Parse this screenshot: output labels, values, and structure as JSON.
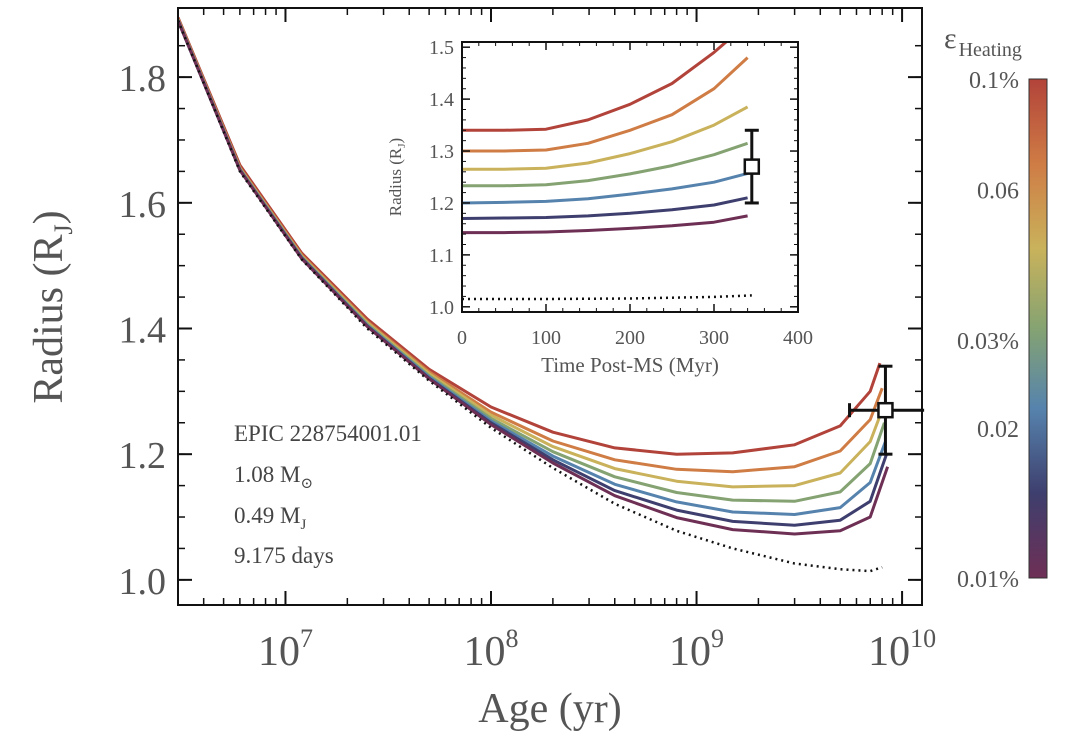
{
  "chart_data": [
    {
      "type": "line",
      "x_scale": "log",
      "xlabel": "Age (yr)",
      "ylabel": "Radius (RJ)",
      "ylabel_main": "Radius (R",
      "ylabel_sub": "J",
      "ylabel_close": ")",
      "xlim": [
        3000000,
        12500000000
      ],
      "ylim": [
        0.96,
        1.91
      ],
      "x_tick_labels": [
        "10^7",
        "10^8",
        "10^9",
        "10^10"
      ],
      "x_ticks_exponent": [
        "7",
        "8",
        "9",
        "10"
      ],
      "y_ticks": [
        "1.0",
        "1.2",
        "1.4",
        "1.6",
        "1.8"
      ],
      "annotation": {
        "name": "EPIC 228754001.01",
        "mass_star": "1.08 M",
        "mass_star_sub": "⊙",
        "mass_planet": "0.49 M",
        "mass_planet_sub": "J",
        "period": "9.175 days"
      },
      "series": [
        {
          "heating_pct": 0.1,
          "color": "#b2433a",
          "x": [
            3000000,
            6000000,
            12000000,
            25000000,
            50000000,
            100000000,
            200000000,
            400000000,
            800000000,
            1500000000,
            3000000000,
            5000000000,
            7000000000,
            7800000000
          ],
          "y": [
            1.895,
            1.66,
            1.52,
            1.415,
            1.335,
            1.275,
            1.235,
            1.21,
            1.2,
            1.202,
            1.215,
            1.245,
            1.3,
            1.345
          ]
        },
        {
          "heating_pct": 0.08,
          "color": "#cf7c45",
          "x": [
            3000000,
            6000000,
            12000000,
            25000000,
            50000000,
            100000000,
            200000000,
            400000000,
            800000000,
            1500000000,
            3000000000,
            5000000000,
            7000000000,
            8000000000
          ],
          "y": [
            1.893,
            1.656,
            1.517,
            1.411,
            1.331,
            1.267,
            1.221,
            1.191,
            1.176,
            1.172,
            1.18,
            1.205,
            1.255,
            1.305
          ]
        },
        {
          "heating_pct": 0.06,
          "color": "#c9b25b",
          "x": [
            3000000,
            6000000,
            12000000,
            25000000,
            50000000,
            100000000,
            200000000,
            400000000,
            800000000,
            1500000000,
            3000000000,
            5000000000,
            7000000000,
            8100000000
          ],
          "y": [
            1.892,
            1.655,
            1.515,
            1.409,
            1.328,
            1.262,
            1.212,
            1.177,
            1.157,
            1.148,
            1.15,
            1.17,
            1.22,
            1.275
          ]
        },
        {
          "heating_pct": 0.04,
          "color": "#85a372",
          "x": [
            3000000,
            6000000,
            12000000,
            25000000,
            50000000,
            100000000,
            200000000,
            400000000,
            800000000,
            1500000000,
            3000000000,
            5000000000,
            7000000000,
            8200000000
          ],
          "y": [
            1.891,
            1.654,
            1.514,
            1.407,
            1.325,
            1.257,
            1.204,
            1.164,
            1.139,
            1.127,
            1.125,
            1.14,
            1.185,
            1.25
          ]
        },
        {
          "heating_pct": 0.025,
          "color": "#5683ad",
          "x": [
            3000000,
            6000000,
            12000000,
            25000000,
            50000000,
            100000000,
            200000000,
            400000000,
            800000000,
            1500000000,
            3000000000,
            5000000000,
            7000000000,
            8300000000
          ],
          "y": [
            1.891,
            1.653,
            1.513,
            1.405,
            1.323,
            1.253,
            1.197,
            1.152,
            1.124,
            1.108,
            1.104,
            1.115,
            1.155,
            1.22
          ]
        },
        {
          "heating_pct": 0.015,
          "color": "#3e3f6e",
          "x": [
            3000000,
            6000000,
            12000000,
            25000000,
            50000000,
            100000000,
            200000000,
            400000000,
            800000000,
            1500000000,
            3000000000,
            5000000000,
            7000000000,
            8400000000
          ],
          "y": [
            1.89,
            1.652,
            1.512,
            1.404,
            1.321,
            1.25,
            1.191,
            1.142,
            1.111,
            1.093,
            1.087,
            1.095,
            1.125,
            1.2
          ]
        },
        {
          "heating_pct": 0.01,
          "color": "#6e2f55",
          "x": [
            3000000,
            6000000,
            12000000,
            25000000,
            50000000,
            100000000,
            200000000,
            400000000,
            800000000,
            1500000000,
            3000000000,
            5000000000,
            7000000000,
            8500000000
          ],
          "y": [
            1.89,
            1.652,
            1.511,
            1.403,
            1.32,
            1.247,
            1.186,
            1.134,
            1.099,
            1.08,
            1.073,
            1.078,
            1.1,
            1.18
          ]
        },
        {
          "heating_pct": 0,
          "color": "#111111",
          "dashed": true,
          "x": [
            3000000,
            6000000,
            12000000,
            25000000,
            50000000,
            100000000,
            200000000,
            400000000,
            800000000,
            1500000000,
            3000000000,
            5000000000,
            7000000000,
            8000000000
          ],
          "y": [
            1.89,
            1.65,
            1.51,
            1.4,
            1.317,
            1.242,
            1.178,
            1.121,
            1.078,
            1.05,
            1.026,
            1.017,
            1.014,
            1.02
          ]
        }
      ],
      "observation": {
        "x": 8300000000,
        "y": 1.27,
        "y_err": 0.07,
        "x_err_low": 2750000000,
        "x_err_high": 4500000000
      }
    },
    {
      "type": "line",
      "xlabel": "Time Post-MS (Myr)",
      "ylabel": "Radius (RJ)",
      "ylabel_main": "Radius (R",
      "ylabel_sub": "J",
      "ylabel_close": ")",
      "xlim": [
        0,
        400
      ],
      "ylim": [
        0.99,
        1.51
      ],
      "x_ticks": [
        "0",
        "100",
        "200",
        "300",
        "400"
      ],
      "y_ticks": [
        "1.0",
        "1.1",
        "1.2",
        "1.3",
        "1.4",
        "1.5"
      ],
      "series": [
        {
          "color": "#b2433a",
          "x": [
            0,
            50,
            100,
            150,
            200,
            250,
            300,
            350
          ],
          "y": [
            1.34,
            1.34,
            1.342,
            1.36,
            1.39,
            1.43,
            1.49,
            1.56
          ]
        },
        {
          "color": "#cf7c45",
          "x": [
            0,
            50,
            100,
            150,
            200,
            250,
            300,
            340
          ],
          "y": [
            1.3,
            1.3,
            1.302,
            1.315,
            1.34,
            1.37,
            1.42,
            1.48
          ]
        },
        {
          "color": "#c9b25b",
          "x": [
            0,
            50,
            100,
            150,
            200,
            250,
            300,
            340
          ],
          "y": [
            1.265,
            1.265,
            1.267,
            1.277,
            1.295,
            1.318,
            1.35,
            1.385
          ]
        },
        {
          "color": "#85a372",
          "x": [
            0,
            50,
            100,
            150,
            200,
            250,
            300,
            340
          ],
          "y": [
            1.233,
            1.233,
            1.235,
            1.243,
            1.256,
            1.272,
            1.293,
            1.315
          ]
        },
        {
          "color": "#5683ad",
          "x": [
            0,
            50,
            100,
            150,
            200,
            250,
            300,
            340
          ],
          "y": [
            1.2,
            1.201,
            1.203,
            1.208,
            1.217,
            1.227,
            1.24,
            1.257
          ]
        },
        {
          "color": "#3e3f6e",
          "x": [
            0,
            50,
            100,
            150,
            200,
            250,
            300,
            340
          ],
          "y": [
            1.17,
            1.171,
            1.172,
            1.175,
            1.18,
            1.187,
            1.196,
            1.21
          ]
        },
        {
          "color": "#6e2f55",
          "x": [
            0,
            50,
            100,
            150,
            200,
            250,
            300,
            340
          ],
          "y": [
            1.143,
            1.143,
            1.144,
            1.147,
            1.151,
            1.156,
            1.163,
            1.175
          ]
        },
        {
          "color": "#111111",
          "dashed": true,
          "x": [
            0,
            100,
            200,
            300,
            345
          ],
          "y": [
            1.015,
            1.015,
            1.016,
            1.019,
            1.022
          ]
        }
      ],
      "observation": {
        "x": 345,
        "y": 1.27,
        "y_err": 0.07
      }
    }
  ],
  "colorbar": {
    "title": "ε",
    "title_sub": "Heating",
    "tick_labels": [
      "0.1%",
      "0.06",
      "0.03%",
      "0.02",
      "0.01%"
    ],
    "tick_values": [
      0.1,
      0.06,
      0.03,
      0.02,
      0.01
    ],
    "log_range": [
      0.01,
      0.1
    ],
    "colors": [
      "#6e2f55",
      "#3e3f6e",
      "#5683ad",
      "#85a372",
      "#c9b25b",
      "#cf7c45",
      "#b2433a"
    ]
  }
}
